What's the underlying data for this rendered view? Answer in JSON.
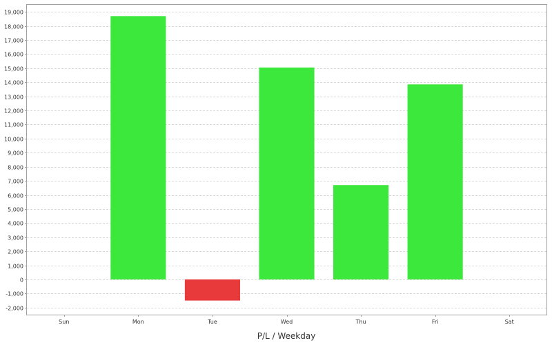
{
  "colors": {
    "positive": "#3de83c",
    "negative": "#e8393b",
    "grid": "#d9d9d9",
    "plot_border": "#a0a0a0",
    "background": "#ffffff"
  },
  "chart_data": {
    "type": "bar",
    "title": "",
    "xlabel": "P/L / Weekday",
    "ylabel": "",
    "categories": [
      "Sun",
      "Mon",
      "Tue",
      "Wed",
      "Thu",
      "Fri",
      "Sat"
    ],
    "values": [
      0,
      18700,
      -1500,
      15050,
      6700,
      13850,
      0
    ],
    "ylim": [
      -2500,
      19500
    ],
    "yticks": [
      -2000,
      -1000,
      0,
      1000,
      2000,
      3000,
      4000,
      5000,
      6000,
      7000,
      8000,
      9000,
      10000,
      11000,
      12000,
      13000,
      14000,
      15000,
      16000,
      17000,
      18000,
      19000
    ],
    "ytick_labels": [
      "-2,000",
      "-1,000",
      "0",
      "1,000",
      "2,000",
      "3,000",
      "4,000",
      "5,000",
      "6,000",
      "7,000",
      "8,000",
      "9,000",
      "10,000",
      "11,000",
      "12,000",
      "13,000",
      "14,000",
      "15,000",
      "16,000",
      "17,000",
      "18,000",
      "19,000"
    ],
    "grid": true,
    "legend": "none"
  }
}
